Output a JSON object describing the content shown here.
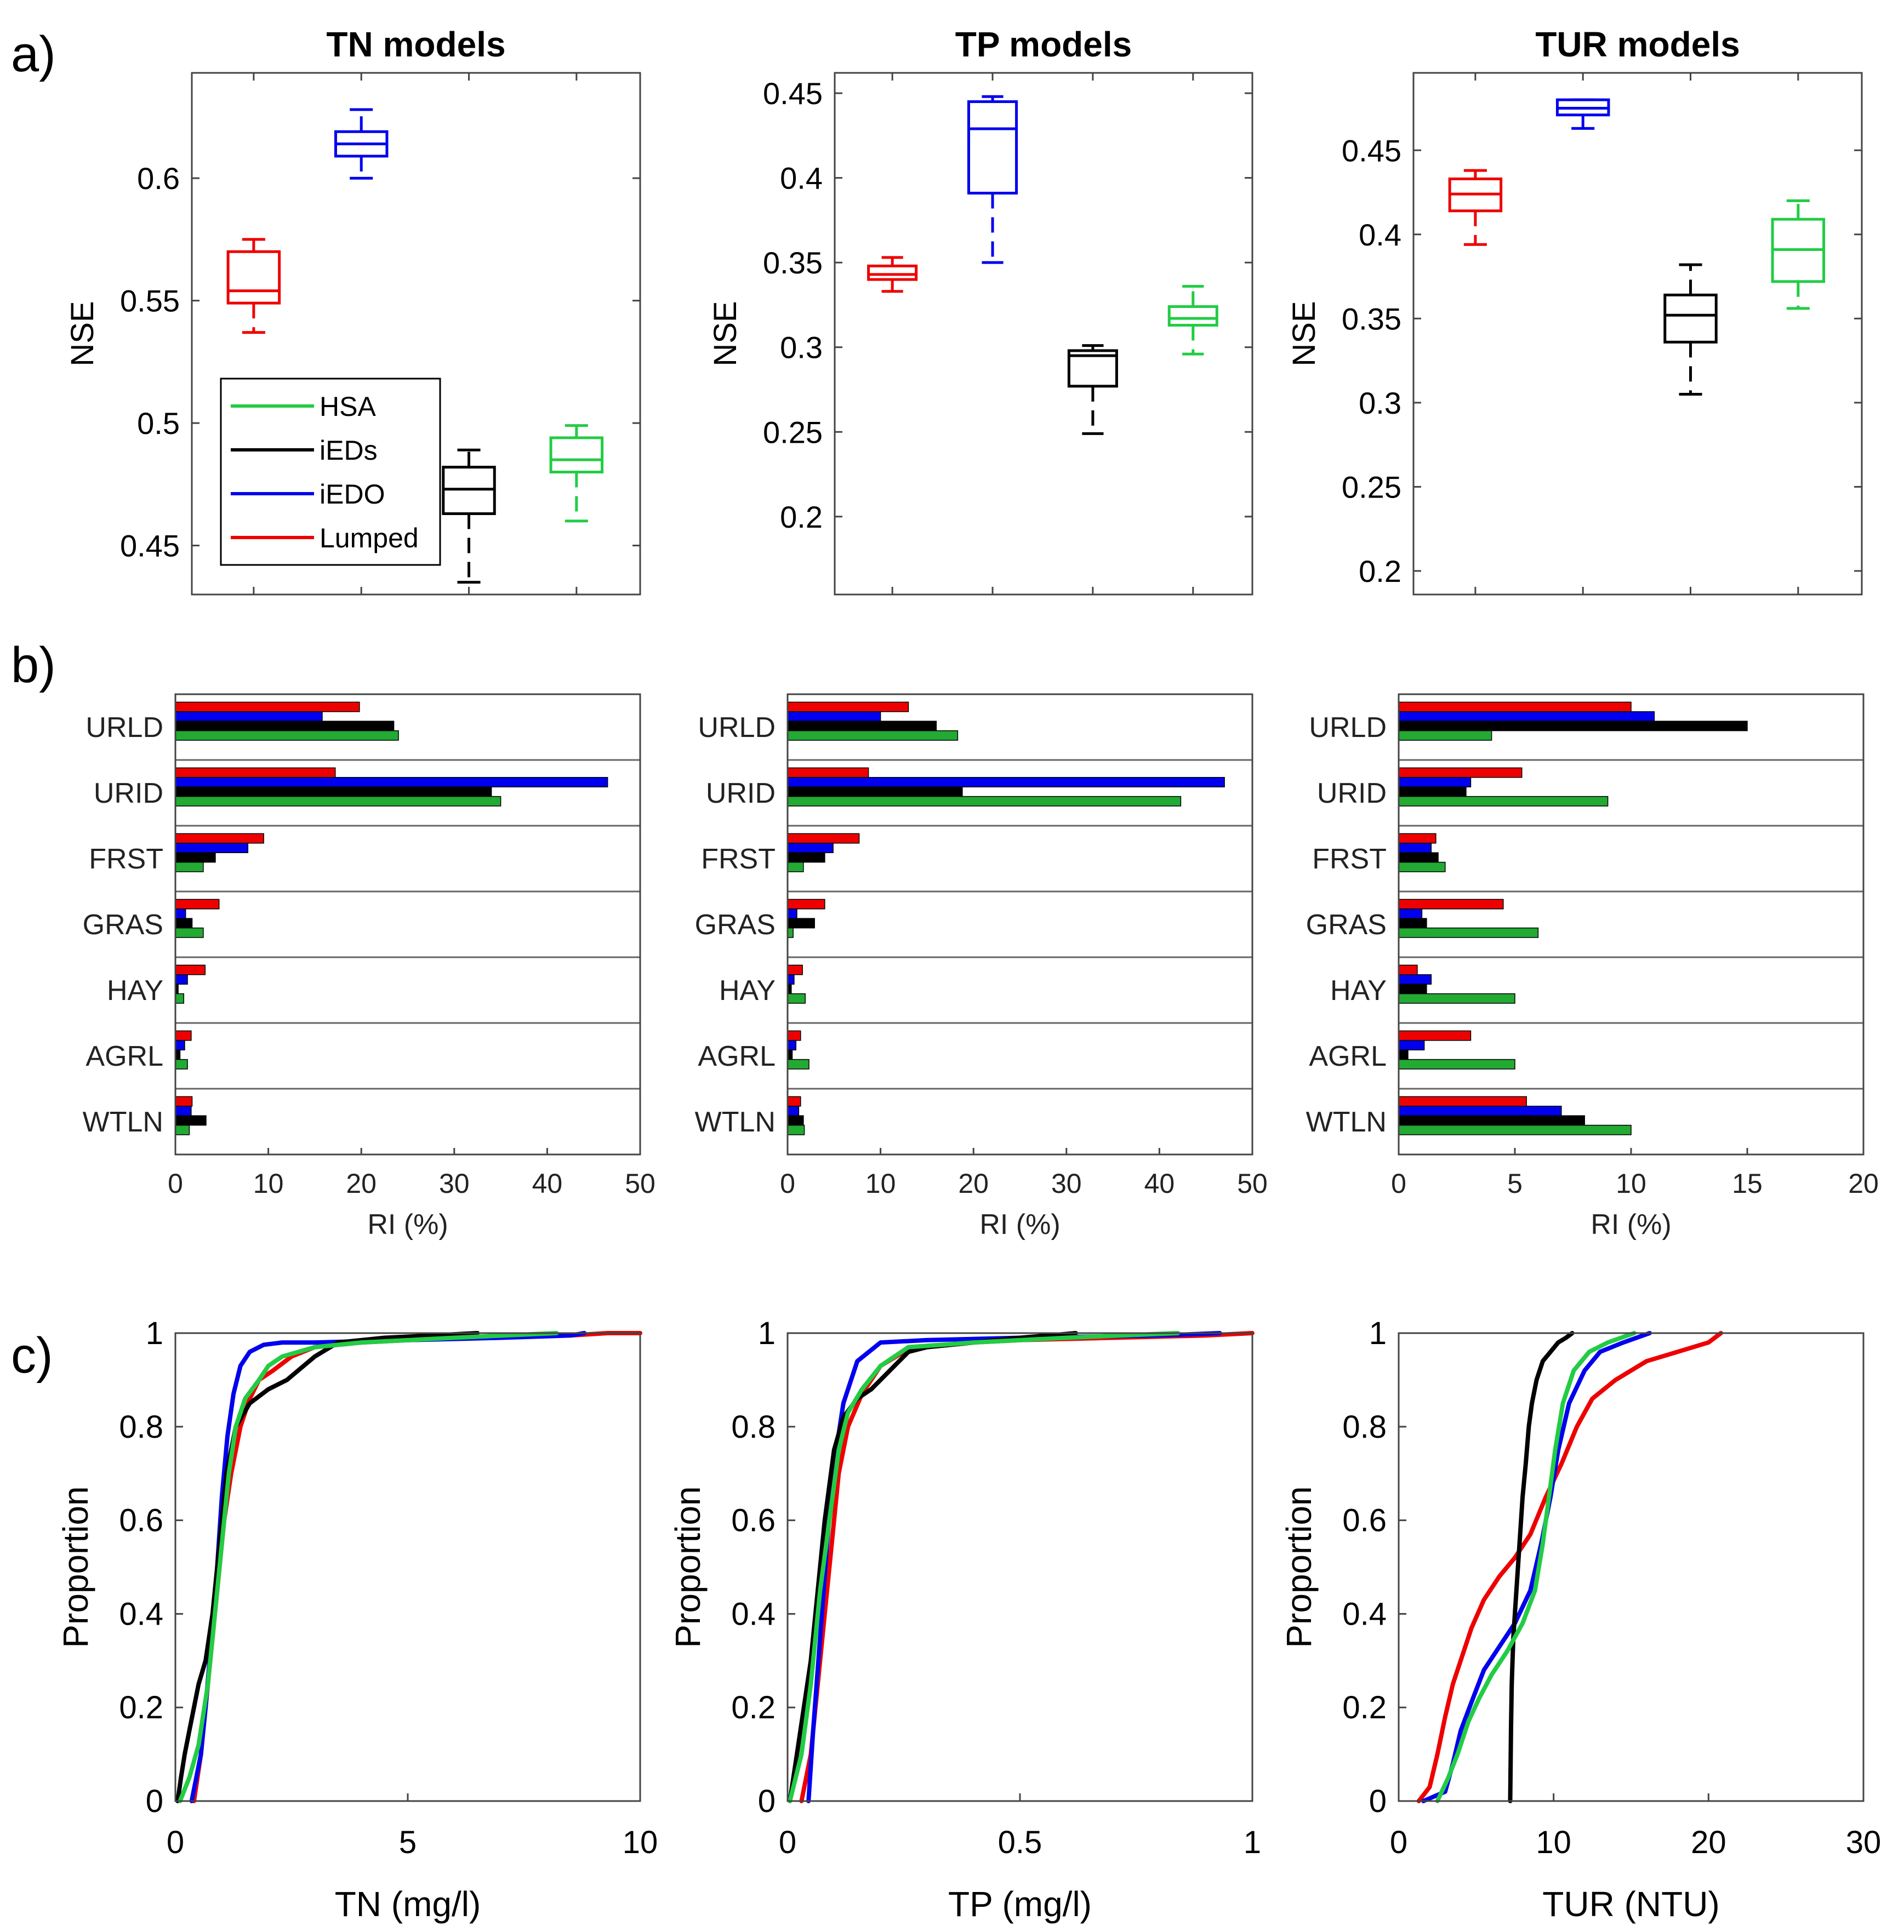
{
  "panel_labels": {
    "a": "a)",
    "b": "b)",
    "c": "c)"
  },
  "colors": {
    "HSA": "#22cc44",
    "iEDs": "#000000",
    "iEDO": "#0000ee",
    "Lumped": "#ee0000",
    "HSA_bar": "#22aa33",
    "axis": "#444444"
  },
  "chart_data": [
    {
      "id": "box-tn",
      "type": "box",
      "title": "TN models",
      "ylabel": "NSE",
      "ylim": [
        0.43,
        0.643
      ],
      "yticks": [
        0.45,
        0.5,
        0.55,
        0.6
      ],
      "yticklabels": [
        "0.45",
        "0.5",
        "0.55",
        "0.6"
      ],
      "legend": [
        "HSA",
        "iEDs",
        "iEDO",
        "Lumped"
      ],
      "boxes": [
        {
          "name": "Lumped",
          "whisker_low": 0.537,
          "q1": 0.549,
          "median": 0.554,
          "q3": 0.57,
          "whisker_high": 0.575
        },
        {
          "name": "iEDO",
          "whisker_low": 0.6,
          "q1": 0.609,
          "median": 0.614,
          "q3": 0.619,
          "whisker_high": 0.628
        },
        {
          "name": "iEDs",
          "whisker_low": 0.435,
          "q1": 0.463,
          "median": 0.473,
          "q3": 0.482,
          "whisker_high": 0.489
        },
        {
          "name": "HSA",
          "whisker_low": 0.46,
          "q1": 0.48,
          "median": 0.485,
          "q3": 0.494,
          "whisker_high": 0.499
        }
      ]
    },
    {
      "id": "box-tp",
      "type": "box",
      "title": "TP models",
      "ylabel": "NSE",
      "ylim": [
        0.154,
        0.462
      ],
      "yticks": [
        0.2,
        0.25,
        0.3,
        0.35,
        0.4,
        0.45
      ],
      "yticklabels": [
        "0.2",
        "0.25",
        "0.3",
        "0.35",
        "0.4",
        "0.45"
      ],
      "boxes": [
        {
          "name": "Lumped",
          "whisker_low": 0.333,
          "q1": 0.34,
          "median": 0.343,
          "q3": 0.348,
          "whisker_high": 0.353
        },
        {
          "name": "iEDO",
          "whisker_low": 0.35,
          "q1": 0.391,
          "median": 0.429,
          "q3": 0.445,
          "whisker_high": 0.448
        },
        {
          "name": "iEDs",
          "whisker_low": 0.249,
          "q1": 0.277,
          "median": 0.295,
          "q3": 0.298,
          "whisker_high": 0.301
        },
        {
          "name": "HSA",
          "whisker_low": 0.296,
          "q1": 0.313,
          "median": 0.317,
          "q3": 0.324,
          "whisker_high": 0.336
        }
      ]
    },
    {
      "id": "box-tur",
      "type": "box",
      "title": "TUR models",
      "ylabel": "NSE",
      "ylim": [
        0.186,
        0.496
      ],
      "yticks": [
        0.2,
        0.25,
        0.3,
        0.35,
        0.4,
        0.45
      ],
      "yticklabels": [
        "0.2",
        "0.25",
        "0.3",
        "0.35",
        "0.4",
        "0.45"
      ],
      "boxes": [
        {
          "name": "Lumped",
          "whisker_low": 0.394,
          "q1": 0.414,
          "median": 0.424,
          "q3": 0.433,
          "whisker_high": 0.438
        },
        {
          "name": "iEDO",
          "whisker_low": 0.463,
          "q1": 0.471,
          "median": 0.475,
          "q3": 0.48,
          "whisker_high": 0.48
        },
        {
          "name": "iEDs",
          "whisker_low": 0.305,
          "q1": 0.336,
          "median": 0.352,
          "q3": 0.364,
          "whisker_high": 0.382
        },
        {
          "name": "HSA",
          "whisker_low": 0.356,
          "q1": 0.372,
          "median": 0.391,
          "q3": 0.409,
          "whisker_high": 0.42
        }
      ]
    },
    {
      "id": "bar-tn",
      "type": "bar",
      "xlabel": "RI (%)",
      "xlim": [
        0,
        50
      ],
      "xticks": [
        0,
        10,
        20,
        30,
        40,
        50
      ],
      "xticklabels": [
        "0",
        "10",
        "20",
        "30",
        "40",
        "50"
      ],
      "categories": [
        "URLD",
        "URID",
        "FRST",
        "GRAS",
        "HAY",
        "AGRL",
        "WTLN"
      ],
      "series": [
        {
          "name": "Lumped",
          "values": [
            19.8,
            17.2,
            9.5,
            4.7,
            3.2,
            1.7,
            1.8
          ]
        },
        {
          "name": "iEDO",
          "values": [
            15.8,
            46.5,
            7.8,
            1.1,
            1.3,
            1.0,
            1.7
          ]
        },
        {
          "name": "iEDs",
          "values": [
            23.5,
            34.0,
            4.3,
            1.8,
            0.3,
            0.5,
            3.3
          ]
        },
        {
          "name": "HSA",
          "values": [
            24.0,
            35.0,
            3.0,
            3.0,
            0.9,
            1.3,
            1.5
          ]
        }
      ]
    },
    {
      "id": "bar-tp",
      "type": "bar",
      "xlabel": "RI (%)",
      "xlim": [
        0,
        50
      ],
      "xticks": [
        0,
        10,
        20,
        30,
        40,
        50
      ],
      "xticklabels": [
        "0",
        "10",
        "20",
        "30",
        "40",
        "50"
      ],
      "categories": [
        "URLD",
        "URID",
        "FRST",
        "GRAS",
        "HAY",
        "AGRL",
        "WTLN"
      ],
      "series": [
        {
          "name": "Lumped",
          "values": [
            13.0,
            8.7,
            7.7,
            4.0,
            1.6,
            1.4,
            1.4
          ]
        },
        {
          "name": "iEDO",
          "values": [
            10.0,
            47.0,
            4.9,
            1.0,
            0.7,
            0.9,
            1.2
          ]
        },
        {
          "name": "iEDs",
          "values": [
            16.0,
            18.8,
            4.0,
            2.9,
            0.4,
            0.5,
            1.7
          ]
        },
        {
          "name": "HSA",
          "values": [
            18.3,
            42.3,
            1.7,
            0.6,
            1.9,
            2.3,
            1.8
          ]
        }
      ]
    },
    {
      "id": "bar-tur",
      "type": "bar",
      "xlabel": "RI (%)",
      "xlim": [
        0,
        20
      ],
      "xticks": [
        0,
        5,
        10,
        15,
        20
      ],
      "xticklabels": [
        "0",
        "5",
        "10",
        "15",
        "20"
      ],
      "categories": [
        "URLD",
        "URID",
        "FRST",
        "GRAS",
        "HAY",
        "AGRL",
        "WTLN"
      ],
      "series": [
        {
          "name": "Lumped",
          "values": [
            10.0,
            5.3,
            1.6,
            4.5,
            0.8,
            3.1,
            5.5
          ]
        },
        {
          "name": "iEDO",
          "values": [
            11.0,
            3.1,
            1.4,
            1.0,
            1.4,
            1.1,
            7.0
          ]
        },
        {
          "name": "iEDs",
          "values": [
            15.0,
            2.9,
            1.7,
            1.2,
            1.2,
            0.4,
            8.0
          ]
        },
        {
          "name": "HSA",
          "values": [
            4.0,
            9.0,
            2.0,
            6.0,
            5.0,
            5.0,
            10.0
          ]
        }
      ]
    },
    {
      "id": "cdf-tn",
      "type": "line",
      "xlabel": "TN (mg/l)",
      "ylabel": "Proportion",
      "xlim": [
        0,
        10
      ],
      "ylim": [
        0,
        1
      ],
      "xticks": [
        0,
        5,
        10
      ],
      "xticklabels": [
        "0",
        "5",
        "10"
      ],
      "yticks": [
        0,
        0.2,
        0.4,
        0.6,
        0.8,
        1
      ],
      "yticklabels": [
        "0",
        "0.2",
        "0.4",
        "0.6",
        "0.8",
        "1"
      ],
      "series": [
        {
          "name": "Lumped",
          "x": [
            0.4,
            0.55,
            0.65,
            0.75,
            0.85,
            0.95,
            1.05,
            1.2,
            1.4,
            1.6,
            1.8,
            2.1,
            2.5,
            3.0,
            4.0,
            6.0,
            8.5,
            9.3,
            10.0
          ],
          "y": [
            0,
            0.1,
            0.2,
            0.3,
            0.4,
            0.5,
            0.6,
            0.7,
            0.8,
            0.86,
            0.9,
            0.92,
            0.95,
            0.97,
            0.98,
            0.99,
            0.995,
            1,
            1
          ]
        },
        {
          "name": "iEDO",
          "x": [
            0.35,
            0.55,
            0.65,
            0.78,
            0.9,
            1.0,
            1.12,
            1.25,
            1.4,
            1.6,
            1.9,
            2.3,
            3.0,
            5.0,
            7.0,
            8.5,
            8.8
          ],
          "y": [
            0,
            0.1,
            0.2,
            0.35,
            0.5,
            0.65,
            0.78,
            0.87,
            0.93,
            0.96,
            0.975,
            0.98,
            0.98,
            0.985,
            0.99,
            0.995,
            1
          ]
        },
        {
          "name": "iEDs",
          "x": [
            0.05,
            0.12,
            0.2,
            0.3,
            0.4,
            0.5,
            0.65,
            0.8,
            0.95,
            1.1,
            1.3,
            1.6,
            2.0,
            2.4,
            3.0,
            3.5,
            4.5,
            5.5,
            6.5
          ],
          "y": [
            0,
            0.05,
            0.1,
            0.15,
            0.2,
            0.25,
            0.3,
            0.4,
            0.55,
            0.7,
            0.8,
            0.85,
            0.88,
            0.9,
            0.95,
            0.98,
            0.99,
            0.995,
            1
          ]
        },
        {
          "name": "HSA",
          "x": [
            0.1,
            0.3,
            0.5,
            0.7,
            0.85,
            1.0,
            1.15,
            1.3,
            1.5,
            1.8,
            2.0,
            2.3,
            3.0,
            4.0,
            6.0,
            8.2
          ],
          "y": [
            0,
            0.05,
            0.12,
            0.25,
            0.4,
            0.55,
            0.7,
            0.8,
            0.86,
            0.9,
            0.93,
            0.95,
            0.97,
            0.98,
            0.99,
            1
          ]
        }
      ]
    },
    {
      "id": "cdf-tp",
      "type": "line",
      "xlabel": "TP (mg/l)",
      "ylabel": "Proportion",
      "xlim": [
        0,
        1
      ],
      "ylim": [
        0,
        1
      ],
      "xticks": [
        0,
        0.5,
        1
      ],
      "xticklabels": [
        "0",
        "0.5",
        "1"
      ],
      "yticks": [
        0,
        0.2,
        0.4,
        0.6,
        0.8,
        1
      ],
      "yticklabels": [
        "0",
        "0.2",
        "0.4",
        "0.6",
        "0.8",
        "1"
      ],
      "series": [
        {
          "name": "Lumped",
          "x": [
            0.03,
            0.05,
            0.065,
            0.08,
            0.095,
            0.11,
            0.13,
            0.16,
            0.2,
            0.25,
            0.3,
            0.4,
            0.5,
            0.7,
            0.9,
            1.0
          ],
          "y": [
            0,
            0.1,
            0.25,
            0.4,
            0.55,
            0.7,
            0.8,
            0.87,
            0.93,
            0.96,
            0.97,
            0.98,
            0.985,
            0.99,
            0.995,
            1
          ]
        },
        {
          "name": "iEDO",
          "x": [
            0.045,
            0.055,
            0.07,
            0.085,
            0.1,
            0.12,
            0.15,
            0.2,
            0.3,
            0.5,
            0.8,
            0.93
          ],
          "y": [
            0,
            0.15,
            0.35,
            0.55,
            0.72,
            0.85,
            0.94,
            0.98,
            0.985,
            0.99,
            0.995,
            1
          ]
        },
        {
          "name": "iEDs",
          "x": [
            0.005,
            0.02,
            0.035,
            0.05,
            0.065,
            0.08,
            0.1,
            0.12,
            0.15,
            0.18,
            0.22,
            0.26,
            0.3,
            0.4,
            0.5,
            0.62
          ],
          "y": [
            0,
            0.1,
            0.2,
            0.3,
            0.45,
            0.6,
            0.75,
            0.82,
            0.86,
            0.88,
            0.92,
            0.96,
            0.97,
            0.98,
            0.99,
            1
          ]
        },
        {
          "name": "HSA",
          "x": [
            0.005,
            0.03,
            0.05,
            0.07,
            0.09,
            0.11,
            0.13,
            0.16,
            0.2,
            0.26,
            0.4,
            0.6,
            0.84
          ],
          "y": [
            0,
            0.1,
            0.25,
            0.45,
            0.6,
            0.75,
            0.83,
            0.88,
            0.93,
            0.97,
            0.98,
            0.99,
            1
          ]
        }
      ]
    },
    {
      "id": "cdf-tur",
      "type": "line",
      "xlabel": "TUR (NTU)",
      "ylabel": "Proportion",
      "xlim": [
        0,
        30
      ],
      "ylim": [
        0,
        1
      ],
      "xticks": [
        0,
        10,
        20,
        30
      ],
      "xticklabels": [
        "0",
        "10",
        "20",
        "30"
      ],
      "yticks": [
        0,
        0.2,
        0.4,
        0.6,
        0.8,
        1
      ],
      "yticklabels": [
        "0",
        "0.2",
        "0.4",
        "0.6",
        "0.8",
        "1"
      ],
      "series": [
        {
          "name": "Lumped",
          "x": [
            1.3,
            2.0,
            2.5,
            3.0,
            3.5,
            4.0,
            4.7,
            5.5,
            6.5,
            7.5,
            8.5,
            9.5,
            10.5,
            11.5,
            12.5,
            14.0,
            16.0,
            18.0,
            20.0,
            20.8
          ],
          "y": [
            0,
            0.03,
            0.1,
            0.18,
            0.25,
            0.3,
            0.37,
            0.43,
            0.48,
            0.52,
            0.57,
            0.65,
            0.72,
            0.8,
            0.86,
            0.9,
            0.94,
            0.96,
            0.98,
            1
          ]
        },
        {
          "name": "iEDO",
          "x": [
            1.6,
            3.0,
            3.5,
            4.0,
            4.8,
            5.5,
            6.5,
            7.5,
            8.5,
            9.2,
            9.8,
            10.3,
            11.0,
            12.0,
            13.0,
            14.5,
            16.2
          ],
          "y": [
            0,
            0.02,
            0.08,
            0.15,
            0.22,
            0.28,
            0.33,
            0.38,
            0.45,
            0.55,
            0.65,
            0.75,
            0.85,
            0.92,
            0.96,
            0.98,
            1
          ]
        },
        {
          "name": "iEDs",
          "x": [
            7.2,
            7.25,
            7.3,
            7.4,
            7.6,
            7.8,
            8.0,
            8.2,
            8.4,
            8.6,
            8.9,
            9.3,
            9.8,
            10.3,
            10.8,
            11.2
          ],
          "y": [
            0,
            0.15,
            0.25,
            0.35,
            0.45,
            0.55,
            0.65,
            0.72,
            0.8,
            0.85,
            0.9,
            0.94,
            0.96,
            0.98,
            0.99,
            1
          ]
        },
        {
          "name": "HSA",
          "x": [
            2.5,
            3.2,
            3.8,
            4.5,
            5.2,
            6.0,
            7.0,
            8.0,
            8.8,
            9.3,
            9.7,
            10.1,
            10.6,
            11.3,
            12.3,
            13.5,
            15.2
          ],
          "y": [
            0,
            0.05,
            0.1,
            0.17,
            0.22,
            0.27,
            0.32,
            0.38,
            0.45,
            0.55,
            0.65,
            0.75,
            0.85,
            0.92,
            0.96,
            0.98,
            1
          ]
        }
      ]
    }
  ]
}
